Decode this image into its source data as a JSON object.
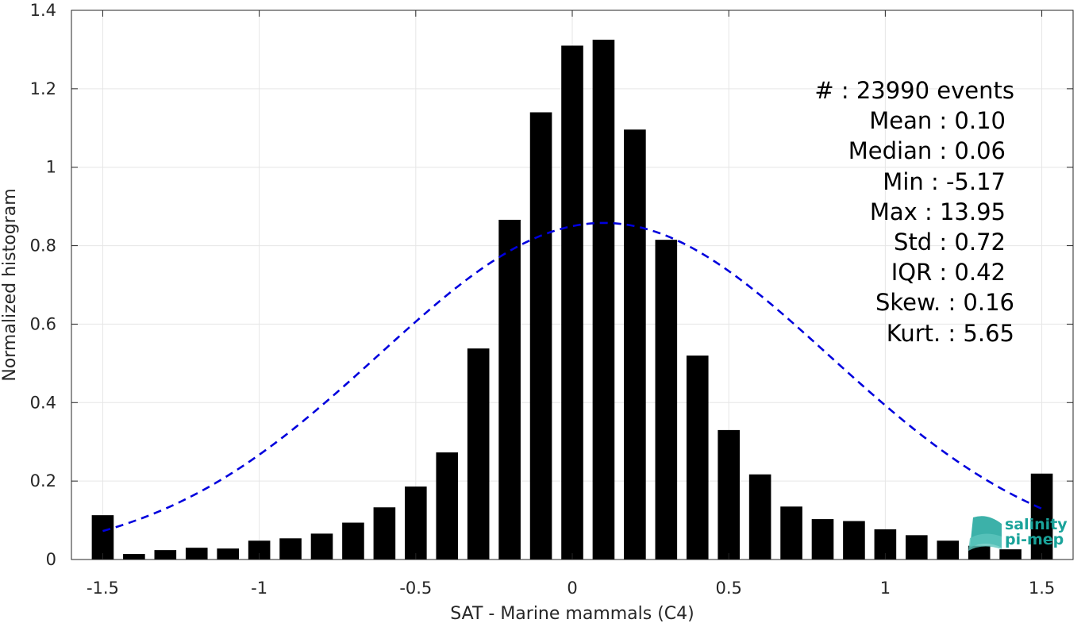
{
  "chart_data": {
    "type": "bar",
    "title": "",
    "xlabel": "SAT - Marine mammals (C4)",
    "ylabel": "Normalized histogram",
    "xlim": [
      -1.6,
      1.6
    ],
    "ylim": [
      0,
      1.4
    ],
    "xticks": [
      -1.5,
      -1,
      -0.5,
      0,
      0.5,
      1,
      1.5
    ],
    "xtick_labels": [
      "-1.5",
      "-1",
      "-0.5",
      "0",
      "0.5",
      "1",
      "1.5"
    ],
    "yticks": [
      0,
      0.2,
      0.4,
      0.6,
      0.8,
      1,
      1.2,
      1.4
    ],
    "ytick_labels": [
      "0",
      "0.2",
      "0.4",
      "0.6",
      "0.8",
      "1",
      "1.2",
      "1.4"
    ],
    "grid": true,
    "bar_color": "#000000",
    "bars": {
      "x": [
        -1.5,
        -1.4,
        -1.3,
        -1.2,
        -1.1,
        -1.0,
        -0.9,
        -0.8,
        -0.7,
        -0.6,
        -0.5,
        -0.4,
        -0.3,
        -0.2,
        -0.1,
        0.0,
        0.1,
        0.2,
        0.3,
        0.4,
        0.5,
        0.6,
        0.7,
        0.8,
        0.9,
        1.0,
        1.1,
        1.2,
        1.3,
        1.4,
        1.5
      ],
      "values": [
        0.113,
        0.014,
        0.024,
        0.03,
        0.028,
        0.048,
        0.054,
        0.066,
        0.094,
        0.133,
        0.186,
        0.273,
        0.538,
        0.866,
        1.14,
        1.31,
        1.325,
        1.096,
        0.815,
        0.52,
        0.33,
        0.217,
        0.135,
        0.103,
        0.098,
        0.077,
        0.062,
        0.048,
        0.035,
        0.026,
        0.219
      ],
      "width": 0.07
    },
    "fit": {
      "type": "gaussian",
      "mean": 0.1,
      "std": 0.72,
      "peak": 0.858,
      "color": "#0000dd",
      "style": "dashed",
      "range": [
        -1.5,
        1.5
      ]
    },
    "stats": {
      "count": "#  : 23990 events",
      "mean": "Mean : 0.10",
      "median": "Median : 0.06",
      "min": "Min : -5.17",
      "max": "Max : 13.95",
      "std": "Std : 0.72",
      "iqr": "IQR : 0.42",
      "skew": "Skew. : 0.16",
      "kurt": "Kurt. : 5.65"
    },
    "logo": {
      "line1": "salinity",
      "line2": "pi-mep",
      "color": "#1aa39a"
    }
  }
}
